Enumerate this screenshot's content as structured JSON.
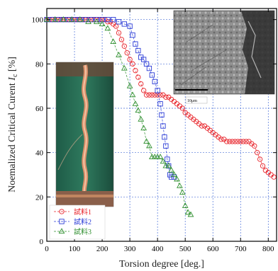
{
  "chart_data": {
    "type": "scatter",
    "xlabel": "Torsion degree [deg.]",
    "ylabel_main": "Noemalized Critical Curent ",
    "ylabel_symbol": "I",
    "ylabel_sub": "c",
    "ylabel_unit": " [%]",
    "xlim": [
      0,
      830
    ],
    "ylim": [
      0,
      105
    ],
    "x_ticks": [
      0,
      100,
      200,
      300,
      400,
      500,
      600,
      700,
      800
    ],
    "y_ticks": [
      0,
      20,
      40,
      60,
      80,
      100
    ],
    "grid": true,
    "legend_position": "bottom-left",
    "series": [
      {
        "name": "試料1",
        "color": "#e8232a",
        "marker": "circle",
        "points": [
          [
            0,
            100
          ],
          [
            10,
            100
          ],
          [
            20,
            100
          ],
          [
            30,
            100
          ],
          [
            40,
            100
          ],
          [
            50,
            100
          ],
          [
            60,
            100
          ],
          [
            70,
            100
          ],
          [
            80,
            100
          ],
          [
            90,
            100
          ],
          [
            100,
            100
          ],
          [
            110,
            100
          ],
          [
            120,
            100
          ],
          [
            130,
            100
          ],
          [
            140,
            100
          ],
          [
            150,
            100
          ],
          [
            160,
            100
          ],
          [
            170,
            100
          ],
          [
            180,
            100
          ],
          [
            190,
            100
          ],
          [
            200,
            100
          ],
          [
            210,
            100
          ],
          [
            220,
            99
          ],
          [
            230,
            99
          ],
          [
            240,
            98
          ],
          [
            250,
            97
          ],
          [
            260,
            94
          ],
          [
            270,
            91
          ],
          [
            280,
            88
          ],
          [
            290,
            85
          ],
          [
            300,
            82
          ],
          [
            310,
            80
          ],
          [
            320,
            77
          ],
          [
            330,
            74
          ],
          [
            340,
            71
          ],
          [
            350,
            68
          ],
          [
            360,
            66
          ],
          [
            370,
            66
          ],
          [
            380,
            66
          ],
          [
            390,
            66
          ],
          [
            400,
            66
          ],
          [
            410,
            66
          ],
          [
            420,
            66
          ],
          [
            430,
            65
          ],
          [
            440,
            65
          ],
          [
            450,
            64
          ],
          [
            460,
            63
          ],
          [
            470,
            62
          ],
          [
            480,
            61
          ],
          [
            490,
            60
          ],
          [
            500,
            58
          ],
          [
            510,
            57
          ],
          [
            520,
            56
          ],
          [
            530,
            55
          ],
          [
            540,
            54
          ],
          [
            550,
            53
          ],
          [
            560,
            52
          ],
          [
            570,
            52
          ],
          [
            580,
            51
          ],
          [
            590,
            50
          ],
          [
            600,
            49
          ],
          [
            610,
            48
          ],
          [
            620,
            47
          ],
          [
            630,
            46
          ],
          [
            640,
            46
          ],
          [
            650,
            45
          ],
          [
            660,
            45
          ],
          [
            670,
            45
          ],
          [
            680,
            45
          ],
          [
            690,
            45
          ],
          [
            700,
            45
          ],
          [
            710,
            45
          ],
          [
            720,
            45
          ],
          [
            730,
            45
          ],
          [
            740,
            44
          ],
          [
            750,
            43
          ],
          [
            760,
            40
          ],
          [
            770,
            37
          ],
          [
            780,
            34
          ],
          [
            790,
            32
          ],
          [
            800,
            31
          ],
          [
            810,
            30
          ],
          [
            820,
            29
          ]
        ]
      },
      {
        "name": "試料2",
        "color": "#2a3bd6",
        "marker": "square",
        "points": [
          [
            0,
            100
          ],
          [
            20,
            100
          ],
          [
            40,
            100
          ],
          [
            60,
            100
          ],
          [
            80,
            100
          ],
          [
            100,
            100
          ],
          [
            120,
            100
          ],
          [
            140,
            100
          ],
          [
            160,
            100
          ],
          [
            180,
            100
          ],
          [
            200,
            100
          ],
          [
            220,
            100
          ],
          [
            240,
            100
          ],
          [
            260,
            99
          ],
          [
            280,
            98
          ],
          [
            300,
            97
          ],
          [
            310,
            93
          ],
          [
            320,
            89
          ],
          [
            330,
            86
          ],
          [
            340,
            83
          ],
          [
            350,
            82
          ],
          [
            360,
            80
          ],
          [
            370,
            78
          ],
          [
            380,
            75
          ],
          [
            390,
            72
          ],
          [
            400,
            68
          ],
          [
            410,
            62
          ],
          [
            415,
            57
          ],
          [
            420,
            52
          ],
          [
            425,
            47
          ],
          [
            430,
            43
          ],
          [
            435,
            37
          ],
          [
            440,
            34
          ],
          [
            445,
            30
          ],
          [
            450,
            29
          ],
          [
            460,
            29
          ]
        ]
      },
      {
        "name": "試料3",
        "color": "#2f8f2f",
        "marker": "triangle",
        "points": [
          [
            0,
            100
          ],
          [
            30,
            100
          ],
          [
            60,
            100
          ],
          [
            90,
            100
          ],
          [
            120,
            100
          ],
          [
            150,
            99
          ],
          [
            180,
            99
          ],
          [
            200,
            98
          ],
          [
            220,
            96
          ],
          [
            240,
            90
          ],
          [
            260,
            84
          ],
          [
            280,
            78
          ],
          [
            300,
            70
          ],
          [
            310,
            66
          ],
          [
            320,
            62
          ],
          [
            330,
            59
          ],
          [
            340,
            55
          ],
          [
            350,
            51
          ],
          [
            360,
            45
          ],
          [
            370,
            43
          ],
          [
            380,
            38
          ],
          [
            390,
            38
          ],
          [
            400,
            38
          ],
          [
            410,
            38
          ],
          [
            420,
            36
          ],
          [
            430,
            34
          ],
          [
            440,
            34
          ],
          [
            450,
            32
          ],
          [
            460,
            30
          ],
          [
            470,
            28
          ],
          [
            480,
            25
          ],
          [
            490,
            22
          ],
          [
            500,
            16
          ],
          [
            510,
            13
          ],
          [
            520,
            12
          ]
        ]
      }
    ]
  },
  "insets": {
    "photo_name": "sample-photo",
    "sem_name": "sem-micrograph",
    "scale_bar_label": "10μm"
  }
}
